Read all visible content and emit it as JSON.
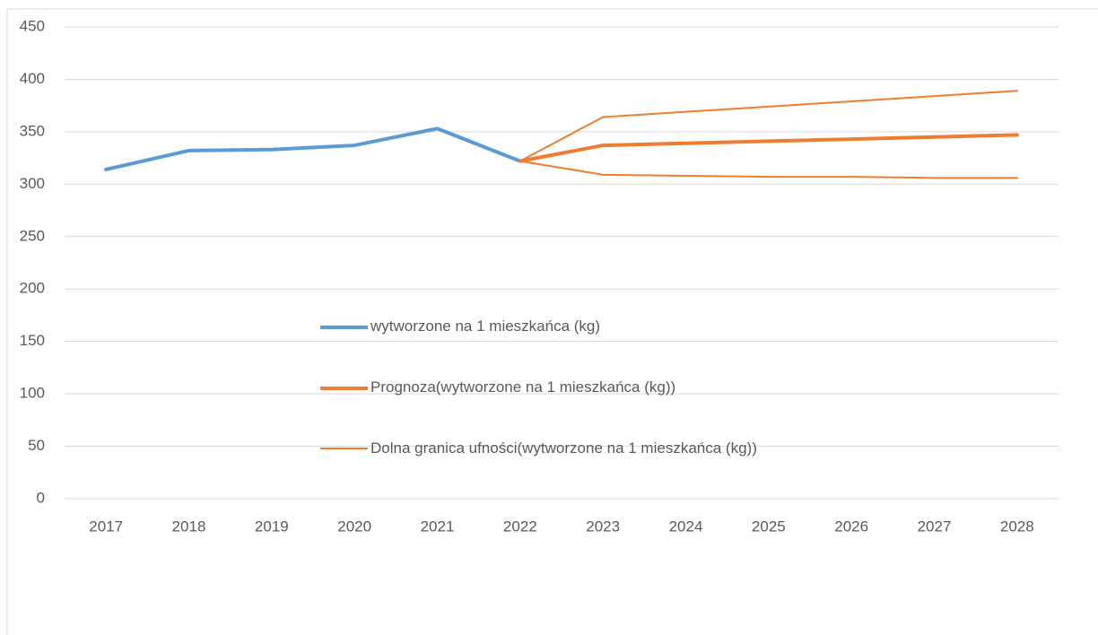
{
  "chart_data": {
    "type": "line",
    "categories": [
      "2017",
      "2018",
      "2019",
      "2020",
      "2021",
      "2022",
      "2023",
      "2024",
      "2025",
      "2026",
      "2027",
      "2028"
    ],
    "series": [
      {
        "name": "wytworzone na 1 mieszkańca (kg)",
        "color": "#5b9bd5",
        "width": 4,
        "values": [
          314,
          332,
          333,
          337,
          353,
          322,
          null,
          null,
          null,
          null,
          null,
          null
        ]
      },
      {
        "name": "Prognoza(wytworzone na 1 mieszkańca (kg))",
        "color": "#ed7d31",
        "width": 4,
        "values": [
          null,
          null,
          null,
          null,
          null,
          322,
          337,
          339,
          341,
          343,
          345,
          347
        ]
      },
      {
        "name": "Dolna granica ufności(wytworzone na 1 mieszkańca (kg))",
        "color": "#ed7d31",
        "width": 2,
        "values": [
          null,
          null,
          null,
          null,
          null,
          322,
          309,
          308,
          307,
          307,
          306,
          306
        ]
      },
      {
        "color": "#ed7d31",
        "width": 2,
        "values": [
          null,
          null,
          null,
          null,
          null,
          322,
          364,
          369,
          374,
          379,
          384,
          389
        ]
      }
    ],
    "ylim": [
      0,
      450
    ],
    "yticks": [
      0,
      50,
      100,
      150,
      200,
      250,
      300,
      350,
      400,
      450
    ],
    "grid": true
  }
}
